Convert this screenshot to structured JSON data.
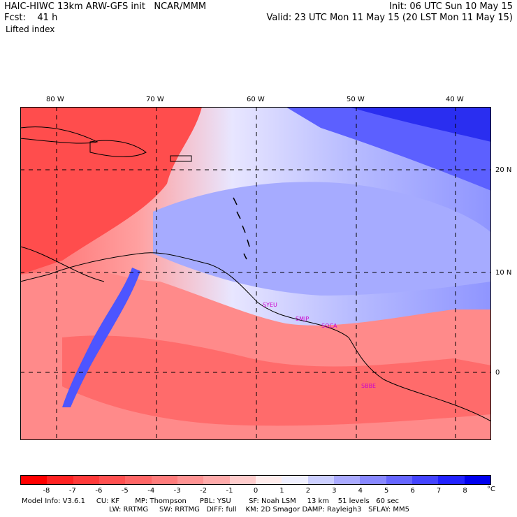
{
  "header": {
    "title": "HAIC-HIWC 13km ARW-GFS init   NCAR/MMM",
    "forecast": "Fcst:    41 h",
    "init": "Init: 06 UTC Sun 10 May 15",
    "valid": "Valid: 23 UTC Mon 11 May 15 (20 LST Mon 11 May 15)",
    "field": "Lifted index"
  },
  "map": {
    "lon_labels": [
      "80 W",
      "70 W",
      "60 W",
      "50 W",
      "40 W"
    ],
    "lat_labels": [
      "20 N",
      "10 N",
      "0"
    ],
    "stations": [
      "SYEU",
      "SMJP",
      "SOCA",
      "SBBE"
    ],
    "colors": {
      "station": "#cc00cc",
      "grid": "#000000",
      "coast": "#000000"
    }
  },
  "colorbar": {
    "labels": [
      "-8",
      "-7",
      "-6",
      "-5",
      "-4",
      "-3",
      "-2",
      "-1",
      "0",
      "1",
      "2",
      "3",
      "4",
      "5",
      "6",
      "7",
      "8"
    ],
    "unit": "°C",
    "colors": [
      "#ff0000",
      "#ff2222",
      "#ff3a3a",
      "#ff5050",
      "#ff6666",
      "#ff7c7c",
      "#ff9393",
      "#ffaaaa",
      "#ffcccc",
      "#ffecec",
      "#f0f0ff",
      "#cccfff",
      "#aaaaff",
      "#8888ff",
      "#6666ff",
      "#4444ff",
      "#2222ff",
      "#0000ee"
    ]
  },
  "footer": {
    "line1": "Model Info: V3.6.1     CU: KF       MP: Thompson      PBL: YSU        SF: Noah LSM     13 km    51 levels   60 sec",
    "line2": "LW: RRTMG     SW: RRTMG   DIFF: full    KM: 2D Smagor DAMP: Rayleigh3   SFLAY: MM5"
  }
}
